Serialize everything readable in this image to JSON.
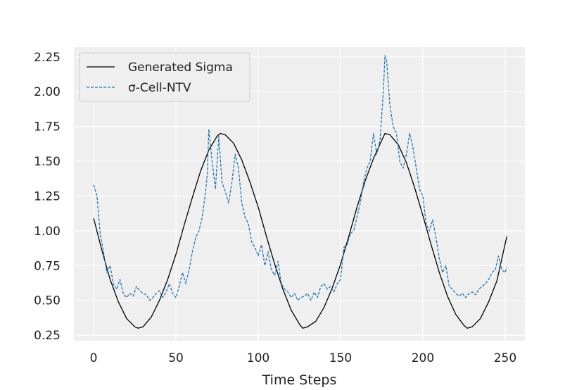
{
  "chart_data": {
    "type": "line",
    "title": "",
    "xlabel": "Time Steps",
    "ylabel": "",
    "xlim": [
      -12,
      262
    ],
    "ylim": [
      0.21,
      2.32
    ],
    "xticks": [
      0,
      50,
      100,
      150,
      200,
      250
    ],
    "xtick_labels": [
      "0",
      "50",
      "100",
      "150",
      "200",
      "250"
    ],
    "yticks": [
      0.25,
      0.5,
      0.75,
      1.0,
      1.25,
      1.5,
      1.75,
      2.0,
      2.25
    ],
    "ytick_labels": [
      "0.25",
      "0.50",
      "0.75",
      "1.00",
      "1.25",
      "1.50",
      "1.75",
      "2.00",
      "2.25"
    ],
    "grid": true,
    "legend_position": "top-left",
    "colors": {
      "background": "#efefef",
      "grid": "#ffffff",
      "generated": "#000000",
      "cell": "#1f77b4"
    },
    "series": [
      {
        "name": "Generated Sigma",
        "style": "solid",
        "color": "#000000",
        "x": [
          0,
          5,
          10,
          15,
          20,
          25,
          27,
          30,
          35,
          40,
          45,
          50,
          55,
          60,
          65,
          70,
          75,
          77,
          80,
          85,
          90,
          95,
          100,
          105,
          110,
          115,
          120,
          125,
          127,
          130,
          135,
          140,
          145,
          150,
          155,
          160,
          165,
          170,
          175,
          177,
          180,
          185,
          190,
          195,
          200,
          205,
          210,
          215,
          220,
          225,
          227,
          230,
          235,
          240,
          245,
          251
        ],
        "y": [
          1.09,
          0.86,
          0.65,
          0.49,
          0.37,
          0.31,
          0.3,
          0.31,
          0.38,
          0.5,
          0.65,
          0.83,
          1.04,
          1.24,
          1.43,
          1.58,
          1.68,
          1.7,
          1.69,
          1.63,
          1.51,
          1.35,
          1.17,
          0.96,
          0.76,
          0.58,
          0.43,
          0.33,
          0.3,
          0.31,
          0.35,
          0.45,
          0.59,
          0.76,
          0.96,
          1.17,
          1.36,
          1.52,
          1.65,
          1.7,
          1.69,
          1.62,
          1.49,
          1.31,
          1.11,
          0.9,
          0.7,
          0.53,
          0.4,
          0.32,
          0.3,
          0.31,
          0.37,
          0.49,
          0.64,
          0.96
        ]
      },
      {
        "name": "σ-Cell-NTV",
        "style": "dashed",
        "color": "#1f77b4",
        "x": [
          0,
          2,
          4,
          6,
          8,
          10,
          12,
          14,
          16,
          18,
          20,
          22,
          24,
          26,
          28,
          30,
          32,
          34,
          36,
          38,
          40,
          42,
          44,
          46,
          48,
          50,
          52,
          54,
          56,
          58,
          60,
          62,
          64,
          66,
          68,
          69,
          70,
          72,
          74,
          76,
          78,
          80,
          82,
          84,
          86,
          88,
          90,
          92,
          94,
          96,
          98,
          100,
          102,
          104,
          106,
          108,
          110,
          112,
          114,
          116,
          118,
          120,
          122,
          124,
          126,
          128,
          130,
          132,
          134,
          136,
          138,
          140,
          142,
          144,
          146,
          148,
          150,
          152,
          154,
          156,
          158,
          160,
          162,
          164,
          166,
          168,
          170,
          172,
          174,
          176,
          177,
          178,
          180,
          182,
          184,
          186,
          188,
          190,
          192,
          194,
          196,
          198,
          200,
          202,
          204,
          206,
          208,
          210,
          212,
          214,
          216,
          218,
          220,
          222,
          224,
          226,
          228,
          230,
          232,
          234,
          236,
          238,
          240,
          242,
          244,
          246,
          248,
          250,
          251
        ],
        "y": [
          1.33,
          1.25,
          0.98,
          0.85,
          0.7,
          0.75,
          0.62,
          0.58,
          0.65,
          0.55,
          0.52,
          0.55,
          0.53,
          0.6,
          0.57,
          0.55,
          0.54,
          0.5,
          0.52,
          0.55,
          0.57,
          0.52,
          0.56,
          0.62,
          0.55,
          0.52,
          0.6,
          0.7,
          0.62,
          0.72,
          0.85,
          0.95,
          1.0,
          1.1,
          1.28,
          1.4,
          1.73,
          1.5,
          1.3,
          1.68,
          1.35,
          1.28,
          1.2,
          1.35,
          1.55,
          1.45,
          1.2,
          1.1,
          1.05,
          0.92,
          0.88,
          0.82,
          0.9,
          0.75,
          0.85,
          0.72,
          0.68,
          0.78,
          0.62,
          0.58,
          0.56,
          0.52,
          0.55,
          0.5,
          0.52,
          0.53,
          0.55,
          0.5,
          0.56,
          0.52,
          0.6,
          0.62,
          0.58,
          0.6,
          0.56,
          0.62,
          0.65,
          0.88,
          0.9,
          0.98,
          1.0,
          1.1,
          1.2,
          1.35,
          1.45,
          1.5,
          1.7,
          1.55,
          1.65,
          2.0,
          2.26,
          2.22,
          1.9,
          1.75,
          1.7,
          1.5,
          1.45,
          1.55,
          1.7,
          1.6,
          1.45,
          1.3,
          1.25,
          1.05,
          1.0,
          1.08,
          0.95,
          0.8,
          0.7,
          0.75,
          0.6,
          0.58,
          0.55,
          0.53,
          0.55,
          0.52,
          0.55,
          0.56,
          0.54,
          0.58,
          0.6,
          0.62,
          0.65,
          0.7,
          0.72,
          0.82,
          0.72,
          0.7,
          0.74
        ]
      }
    ]
  }
}
